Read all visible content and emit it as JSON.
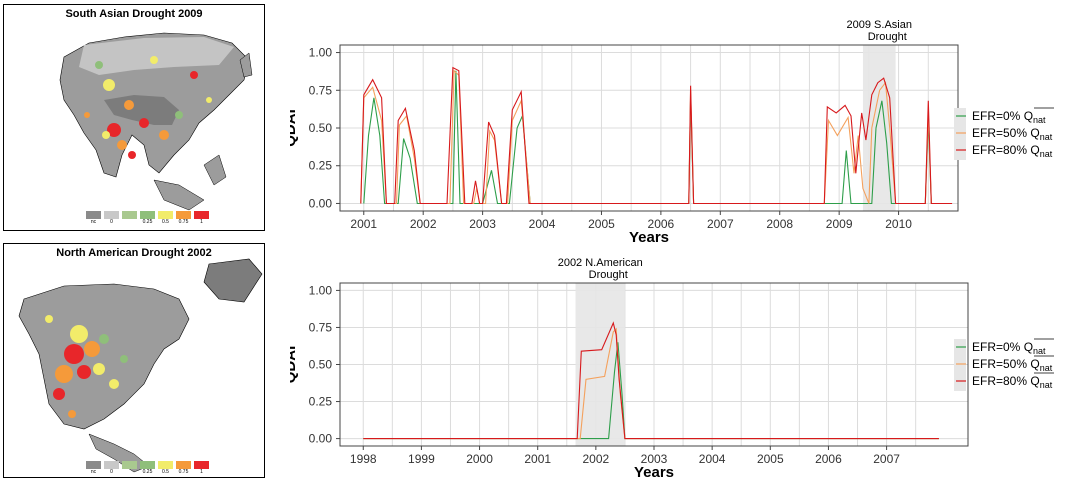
{
  "maps": [
    {
      "title": "South Asian Drought 2009",
      "legend": [
        {
          "label": "nc",
          "color": "#8a8a8a"
        },
        {
          "label": "0",
          "color": "#c8c8c8"
        },
        {
          "label": "",
          "color": "#a9c98f"
        },
        {
          "label": "0.25",
          "color": "#8fbf7a"
        },
        {
          "label": "0.5",
          "color": "#f2ec6a"
        },
        {
          "label": "0.75",
          "color": "#f59a3a"
        },
        {
          "label": "1",
          "color": "#e8262a"
        }
      ]
    },
    {
      "title": "North American Drought 2002",
      "legend": [
        {
          "label": "nc",
          "color": "#8a8a8a"
        },
        {
          "label": "0",
          "color": "#c8c8c8"
        },
        {
          "label": "",
          "color": "#a9c98f"
        },
        {
          "label": "0.25",
          "color": "#8fbf7a"
        },
        {
          "label": "0.5",
          "color": "#f2ec6a"
        },
        {
          "label": "0.75",
          "color": "#f59a3a"
        },
        {
          "label": "1",
          "color": "#e8262a"
        }
      ]
    }
  ],
  "colors": {
    "efr0": "#2e9e4a",
    "efr50": "#f4a15d",
    "efr80": "#d7191c",
    "shade": "#e6e6e6",
    "grid": "#dcdcdc"
  },
  "chart_data": [
    {
      "type": "line",
      "title": "",
      "xlabel": "Years",
      "ylabel": "QDAI",
      "xlim": [
        2000.6,
        2011.0
      ],
      "ylim": [
        -0.05,
        1.05
      ],
      "x_ticks": [
        2001,
        2002,
        2003,
        2004,
        2005,
        2006,
        2007,
        2008,
        2009,
        2010
      ],
      "y_ticks": [
        "0.00",
        "0.25",
        "0.50",
        "0.75",
        "1.00"
      ],
      "annotation": {
        "text": [
          "2009 S.Asian",
          "Drought"
        ],
        "span": [
          2009.4,
          2009.95
        ]
      },
      "legend": [
        "EFR=0%  Q̄nat",
        "EFR=50%  Qnat",
        "EFR=80%  Qnat"
      ],
      "series": [
        {
          "name": "EFR=0%",
          "color_key": "efr0",
          "points": [
            [
              2001.0,
              0.0
            ],
            [
              2001.08,
              0.45
            ],
            [
              2001.17,
              0.7
            ],
            [
              2001.27,
              0.45
            ],
            [
              2001.35,
              0.0
            ],
            [
              2001.58,
              0.0
            ],
            [
              2001.67,
              0.43
            ],
            [
              2001.78,
              0.3
            ],
            [
              2001.9,
              0.0
            ],
            [
              2002.5,
              0.0
            ],
            [
              2002.55,
              0.88
            ],
            [
              2002.62,
              0.0
            ],
            [
              2003.0,
              0.0
            ],
            [
              2003.15,
              0.22
            ],
            [
              2003.25,
              0.0
            ],
            [
              2003.45,
              0.0
            ],
            [
              2003.58,
              0.5
            ],
            [
              2003.67,
              0.58
            ],
            [
              2003.8,
              0.0
            ],
            [
              2006.47,
              0.0
            ],
            [
              2006.5,
              0.7
            ],
            [
              2006.55,
              0.0
            ],
            [
              2009.05,
              0.0
            ],
            [
              2009.12,
              0.35
            ],
            [
              2009.2,
              0.0
            ],
            [
              2009.55,
              0.0
            ],
            [
              2009.62,
              0.5
            ],
            [
              2009.72,
              0.68
            ],
            [
              2009.8,
              0.4
            ],
            [
              2009.88,
              0.0
            ],
            [
              2010.45,
              0.0
            ],
            [
              2010.5,
              0.55
            ],
            [
              2010.55,
              0.0
            ]
          ]
        },
        {
          "name": "EFR=50%",
          "color_key": "efr50",
          "points": [
            [
              2000.95,
              0.0
            ],
            [
              2001.0,
              0.7
            ],
            [
              2001.15,
              0.77
            ],
            [
              2001.3,
              0.55
            ],
            [
              2001.38,
              0.0
            ],
            [
              2001.55,
              0.0
            ],
            [
              2001.6,
              0.52
            ],
            [
              2001.72,
              0.58
            ],
            [
              2001.85,
              0.3
            ],
            [
              2001.95,
              0.0
            ],
            [
              2002.45,
              0.0
            ],
            [
              2002.52,
              0.88
            ],
            [
              2002.6,
              0.85
            ],
            [
              2002.68,
              0.0
            ],
            [
              2002.85,
              0.0
            ],
            [
              2002.9,
              0.1
            ],
            [
              2002.95,
              0.0
            ],
            [
              2003.05,
              0.0
            ],
            [
              2003.12,
              0.48
            ],
            [
              2003.2,
              0.42
            ],
            [
              2003.32,
              0.0
            ],
            [
              2003.42,
              0.0
            ],
            [
              2003.5,
              0.55
            ],
            [
              2003.65,
              0.68
            ],
            [
              2003.8,
              0.0
            ],
            [
              2006.47,
              0.0
            ],
            [
              2006.5,
              0.75
            ],
            [
              2006.55,
              0.0
            ],
            [
              2008.75,
              0.0
            ],
            [
              2008.82,
              0.55
            ],
            [
              2008.97,
              0.45
            ],
            [
              2009.15,
              0.57
            ],
            [
              2009.25,
              0.2
            ],
            [
              2009.32,
              0.45
            ],
            [
              2009.4,
              0.1
            ],
            [
              2009.5,
              0.0
            ],
            [
              2009.55,
              0.5
            ],
            [
              2009.68,
              0.75
            ],
            [
              2009.78,
              0.8
            ],
            [
              2009.85,
              0.5
            ],
            [
              2009.95,
              0.0
            ],
            [
              2010.45,
              0.0
            ],
            [
              2010.5,
              0.6
            ],
            [
              2010.55,
              0.0
            ]
          ]
        },
        {
          "name": "EFR=80%",
          "color_key": "efr80",
          "points": [
            [
              2000.95,
              0.0
            ],
            [
              2001.0,
              0.72
            ],
            [
              2001.15,
              0.82
            ],
            [
              2001.3,
              0.7
            ],
            [
              2001.38,
              0.0
            ],
            [
              2001.52,
              0.0
            ],
            [
              2001.58,
              0.55
            ],
            [
              2001.7,
              0.63
            ],
            [
              2001.85,
              0.35
            ],
            [
              2001.95,
              0.0
            ],
            [
              2002.4,
              0.0
            ],
            [
              2002.5,
              0.9
            ],
            [
              2002.6,
              0.88
            ],
            [
              2002.7,
              0.0
            ],
            [
              2002.82,
              0.0
            ],
            [
              2002.88,
              0.15
            ],
            [
              2002.95,
              0.0
            ],
            [
              2003.0,
              0.0
            ],
            [
              2003.1,
              0.54
            ],
            [
              2003.2,
              0.45
            ],
            [
              2003.32,
              0.0
            ],
            [
              2003.4,
              0.0
            ],
            [
              2003.5,
              0.62
            ],
            [
              2003.65,
              0.74
            ],
            [
              2003.78,
              0.0
            ],
            [
              2006.47,
              0.0
            ],
            [
              2006.5,
              0.78
            ],
            [
              2006.55,
              0.0
            ],
            [
              2008.75,
              0.0
            ],
            [
              2008.8,
              0.64
            ],
            [
              2008.95,
              0.6
            ],
            [
              2009.1,
              0.65
            ],
            [
              2009.2,
              0.58
            ],
            [
              2009.28,
              0.2
            ],
            [
              2009.38,
              0.6
            ],
            [
              2009.45,
              0.42
            ],
            [
              2009.55,
              0.72
            ],
            [
              2009.65,
              0.8
            ],
            [
              2009.75,
              0.83
            ],
            [
              2009.85,
              0.7
            ],
            [
              2009.95,
              0.0
            ],
            [
              2010.45,
              0.0
            ],
            [
              2010.5,
              0.68
            ],
            [
              2010.55,
              0.0
            ],
            [
              2010.9,
              0.0
            ]
          ]
        }
      ]
    },
    {
      "type": "line",
      "title": "",
      "xlabel": "Years",
      "ylabel": "QDAI",
      "xlim": [
        1997.6,
        2008.4
      ],
      "ylim": [
        -0.05,
        1.05
      ],
      "x_ticks": [
        1998,
        1999,
        2000,
        2001,
        2002,
        2003,
        2004,
        2005,
        2006,
        2007
      ],
      "y_ticks": [
        "0.00",
        "0.25",
        "0.50",
        "0.75",
        "1.00"
      ],
      "annotation": {
        "text": [
          "2002 N.American",
          "Drought"
        ],
        "span": [
          2001.65,
          2002.5
        ]
      },
      "legend": [
        "EFR=0%  Q̄nat",
        "EFR=50%  Q̄nat",
        "EFR=80%  Q̄nat"
      ],
      "series": [
        {
          "name": "EFR=0%",
          "color_key": "efr0",
          "points": [
            [
              1998.0,
              0.0
            ],
            [
              2002.22,
              0.0
            ],
            [
              2002.32,
              0.45
            ],
            [
              2002.38,
              0.65
            ],
            [
              2002.45,
              0.3
            ],
            [
              2002.5,
              0.0
            ],
            [
              2007.9,
              0.0
            ]
          ]
        },
        {
          "name": "EFR=50%",
          "color_key": "efr50",
          "points": [
            [
              1998.0,
              0.0
            ],
            [
              2001.73,
              0.0
            ],
            [
              2001.83,
              0.4
            ],
            [
              2002.15,
              0.42
            ],
            [
              2002.3,
              0.72
            ],
            [
              2002.35,
              0.74
            ],
            [
              2002.42,
              0.3
            ],
            [
              2002.5,
              0.0
            ],
            [
              2007.9,
              0.0
            ]
          ]
        },
        {
          "name": "EFR=80%",
          "color_key": "efr80",
          "points": [
            [
              1998.0,
              0.0
            ],
            [
              2001.68,
              0.0
            ],
            [
              2001.75,
              0.59
            ],
            [
              2002.1,
              0.6
            ],
            [
              2002.3,
              0.78
            ],
            [
              2002.35,
              0.7
            ],
            [
              2002.4,
              0.4
            ],
            [
              2002.5,
              0.0
            ],
            [
              2007.9,
              0.0
            ]
          ]
        }
      ]
    }
  ]
}
